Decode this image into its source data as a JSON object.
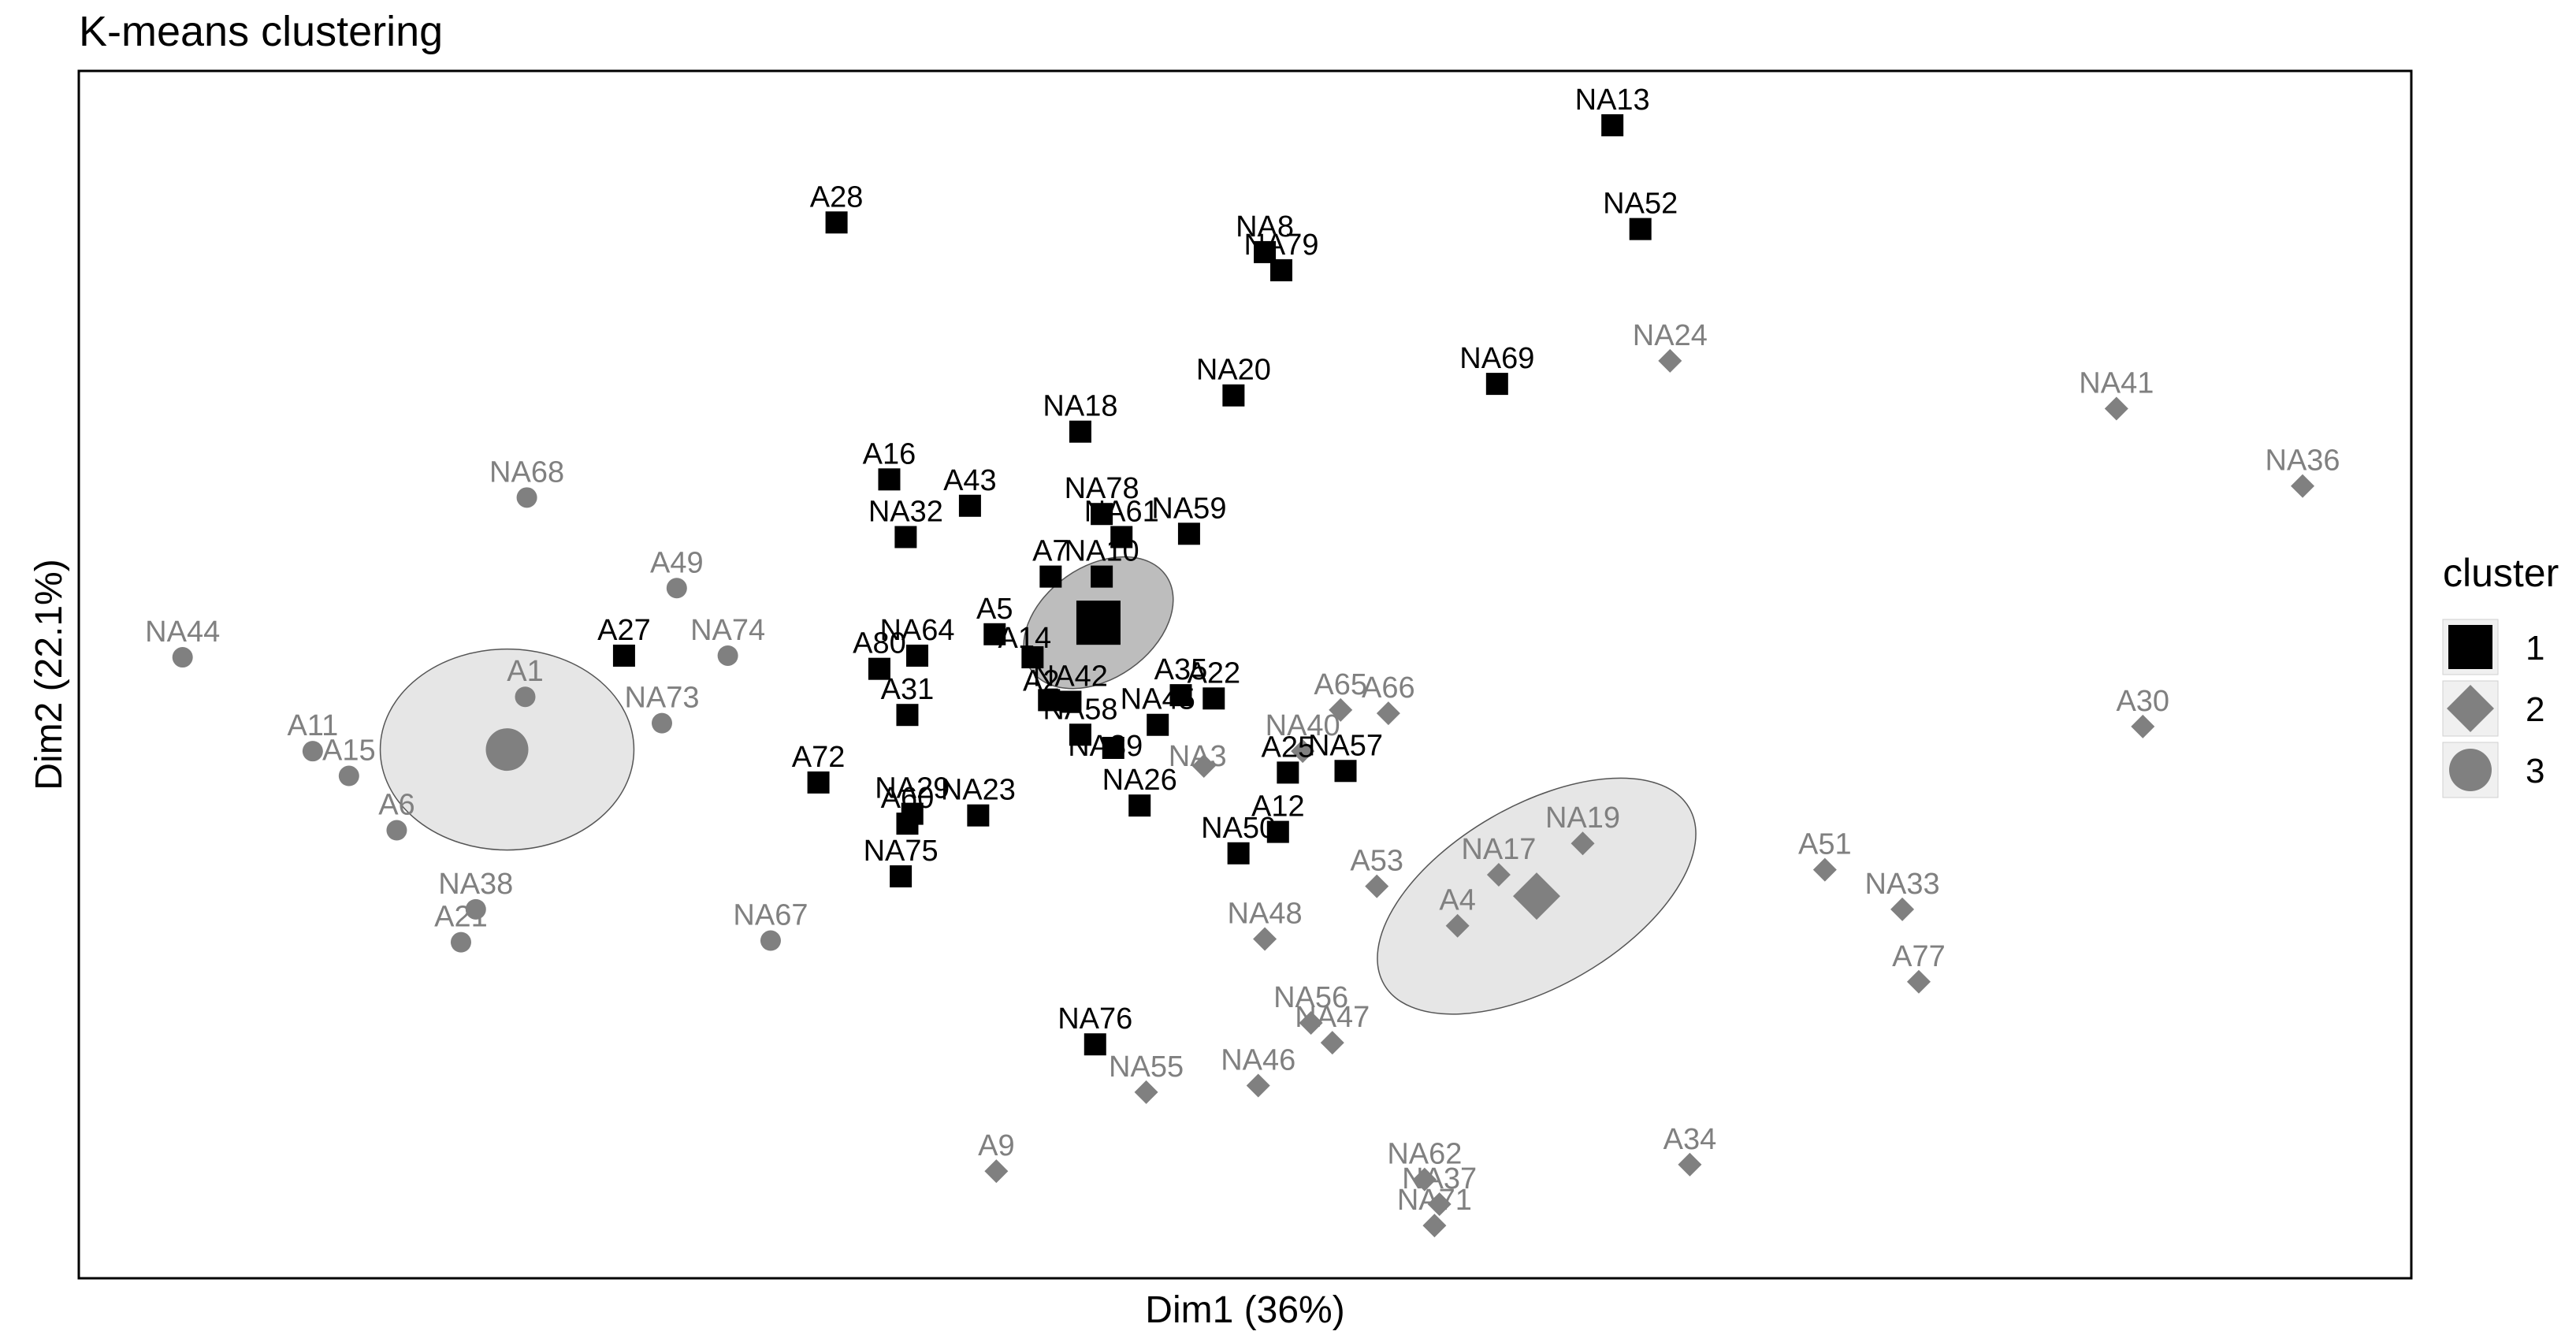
{
  "chart_data": {
    "type": "scatter",
    "title": "K-means clustering",
    "xlabel": "Dim1 (36%)",
    "ylabel": "Dim2 (22.1%)",
    "xlim": [
      0,
      1416
    ],
    "ylim": [
      0,
      733
    ],
    "grid": false,
    "legend": {
      "title": "cluster",
      "position": "right",
      "entries": [
        {
          "label": "1",
          "shape": "square",
          "color": "#000000"
        },
        {
          "label": "2",
          "shape": "diamond",
          "color": "#808080"
        },
        {
          "label": "3",
          "shape": "circle",
          "color": "#808080"
        }
      ]
    },
    "clusters": [
      {
        "name": "1",
        "color": "#000000",
        "label_color": "#000000",
        "shape": "square",
        "centroid": {
          "x": 619,
          "y": 398
        },
        "ellipse": {
          "rx": 50,
          "ry": 34,
          "angle": -35,
          "fill": "#bdbdbd"
        }
      },
      {
        "name": "2",
        "color": "#808080",
        "label_color": "#808080",
        "shape": "diamond",
        "centroid": {
          "x": 885,
          "y": 232
        },
        "ellipse": {
          "rx": 107,
          "ry": 55,
          "angle": -30,
          "fill": "#e6e6e6"
        }
      },
      {
        "name": "3",
        "color": "#808080",
        "label_color": "#808080",
        "shape": "circle",
        "centroid": {
          "x": 260,
          "y": 321
        },
        "ellipse": {
          "rx": 77,
          "ry": 61,
          "angle": 0,
          "fill": "#e6e6e6"
        }
      }
    ],
    "points": [
      {
        "label": "NA13",
        "x": 931,
        "y": 700,
        "cluster": "1"
      },
      {
        "label": "NA52",
        "x": 948,
        "y": 637,
        "cluster": "1"
      },
      {
        "label": "A28",
        "x": 460,
        "y": 641,
        "cluster": "1"
      },
      {
        "label": "NA8",
        "x": 720,
        "y": 623,
        "cluster": "1"
      },
      {
        "label": "NA79",
        "x": 730,
        "y": 612,
        "cluster": "1"
      },
      {
        "label": "NA20",
        "x": 701,
        "y": 536,
        "cluster": "1"
      },
      {
        "label": "NA69",
        "x": 861,
        "y": 543,
        "cluster": "1"
      },
      {
        "label": "NA18",
        "x": 608,
        "y": 514,
        "cluster": "1"
      },
      {
        "label": "A16",
        "x": 492,
        "y": 485,
        "cluster": "1"
      },
      {
        "label": "A43",
        "x": 541,
        "y": 469,
        "cluster": "1"
      },
      {
        "label": "NA78",
        "x": 621,
        "y": 464,
        "cluster": "1"
      },
      {
        "label": "NA32",
        "x": 502,
        "y": 450,
        "cluster": "1"
      },
      {
        "label": "NA61",
        "x": 633,
        "y": 450,
        "cluster": "1"
      },
      {
        "label": "NA59",
        "x": 674,
        "y": 452,
        "cluster": "1"
      },
      {
        "label": "A7",
        "x": 590,
        "y": 426,
        "cluster": "1"
      },
      {
        "label": "NA10",
        "x": 621,
        "y": 426,
        "cluster": "1"
      },
      {
        "label": "A5",
        "x": 556,
        "y": 391,
        "cluster": "1"
      },
      {
        "label": "A14",
        "x": 579,
        "y": 377,
        "cluster": "1"
      },
      {
        "label": "NA64",
        "x": 509,
        "y": 378,
        "cluster": "1"
      },
      {
        "label": "A80",
        "x": 486,
        "y": 370,
        "cluster": "1"
      },
      {
        "label": "A2",
        "x": 589,
        "y": 351,
        "cluster": "1"
      },
      {
        "label": "NA42",
        "x": 602,
        "y": 350,
        "cluster": "1"
      },
      {
        "label": "NA45",
        "x": 655,
        "y": 336,
        "cluster": "1"
      },
      {
        "label": "A35",
        "x": 669,
        "y": 354,
        "cluster": "1"
      },
      {
        "label": "A22",
        "x": 689,
        "y": 352,
        "cluster": "1"
      },
      {
        "label": "A31",
        "x": 503,
        "y": 342,
        "cluster": "1"
      },
      {
        "label": "NA58",
        "x": 608,
        "y": 330,
        "cluster": "1"
      },
      {
        "label": "NA39",
        "x": 628,
        "y": 322,
        "cluster": "1"
      },
      {
        "label": "A25",
        "x": 734,
        "y": 307,
        "cluster": "1"
      },
      {
        "label": "NA57",
        "x": 769,
        "y": 308,
        "cluster": "1"
      },
      {
        "label": "A72",
        "x": 449,
        "y": 301,
        "cluster": "1"
      },
      {
        "label": "NA29",
        "x": 506,
        "y": 282,
        "cluster": "1"
      },
      {
        "label": "A60",
        "x": 503,
        "y": 276,
        "cluster": "1"
      },
      {
        "label": "NA23",
        "x": 546,
        "y": 281,
        "cluster": "1"
      },
      {
        "label": "NA26",
        "x": 644,
        "y": 287,
        "cluster": "1"
      },
      {
        "label": "A12",
        "x": 728,
        "y": 271,
        "cluster": "1"
      },
      {
        "label": "NA50",
        "x": 704,
        "y": 258,
        "cluster": "1"
      },
      {
        "label": "NA75",
        "x": 499,
        "y": 244,
        "cluster": "1"
      },
      {
        "label": "NA76",
        "x": 617,
        "y": 142,
        "cluster": "1"
      },
      {
        "label": "A27",
        "x": 331,
        "y": 378,
        "cluster": "1"
      },
      {
        "label": "NA24",
        "x": 966,
        "y": 557,
        "cluster": "2"
      },
      {
        "label": "NA41",
        "x": 1237,
        "y": 528,
        "cluster": "2"
      },
      {
        "label": "NA36",
        "x": 1350,
        "y": 481,
        "cluster": "2"
      },
      {
        "label": "A65",
        "x": 766,
        "y": 345,
        "cluster": "2"
      },
      {
        "label": "A66",
        "x": 795,
        "y": 343,
        "cluster": "2"
      },
      {
        "label": "NA40",
        "x": 743,
        "y": 320,
        "cluster": "2"
      },
      {
        "label": "NA3",
        "x": 683,
        "y": 311,
        "cluster": "2"
      },
      {
        "label": "A30",
        "x": 1253,
        "y": 335,
        "cluster": "2"
      },
      {
        "label": "NA19",
        "x": 913,
        "y": 264,
        "cluster": "2"
      },
      {
        "label": "A53",
        "x": 788,
        "y": 238,
        "cluster": "2"
      },
      {
        "label": "NA17",
        "x": 862,
        "y": 245,
        "cluster": "2"
      },
      {
        "label": "A4",
        "x": 837,
        "y": 214,
        "cluster": "2"
      },
      {
        "label": "A51",
        "x": 1060,
        "y": 248,
        "cluster": "2"
      },
      {
        "label": "NA33",
        "x": 1107,
        "y": 224,
        "cluster": "2"
      },
      {
        "label": "A77",
        "x": 1117,
        "y": 180,
        "cluster": "2"
      },
      {
        "label": "NA48",
        "x": 720,
        "y": 206,
        "cluster": "2"
      },
      {
        "label": "NA56",
        "x": 748,
        "y": 155,
        "cluster": "2"
      },
      {
        "label": "NA47",
        "x": 761,
        "y": 143,
        "cluster": "2"
      },
      {
        "label": "NA55",
        "x": 648,
        "y": 113,
        "cluster": "2"
      },
      {
        "label": "NA46",
        "x": 716,
        "y": 117,
        "cluster": "2"
      },
      {
        "label": "A9",
        "x": 557,
        "y": 65,
        "cluster": "2"
      },
      {
        "label": "NA62",
        "x": 817,
        "y": 60,
        "cluster": "2"
      },
      {
        "label": "NA37",
        "x": 826,
        "y": 45,
        "cluster": "2"
      },
      {
        "label": "NA71",
        "x": 823,
        "y": 32,
        "cluster": "2"
      },
      {
        "label": "A34",
        "x": 978,
        "y": 69,
        "cluster": "2"
      },
      {
        "label": "NA68",
        "x": 272,
        "y": 474,
        "cluster": "3"
      },
      {
        "label": "A49",
        "x": 363,
        "y": 419,
        "cluster": "3"
      },
      {
        "label": "NA74",
        "x": 394,
        "y": 378,
        "cluster": "3"
      },
      {
        "label": "NA44",
        "x": 63,
        "y": 377,
        "cluster": "3"
      },
      {
        "label": "A1",
        "x": 271,
        "y": 353,
        "cluster": "3"
      },
      {
        "label": "NA73",
        "x": 354,
        "y": 337,
        "cluster": "3"
      },
      {
        "label": "A11",
        "x": 142,
        "y": 320,
        "cluster": "3"
      },
      {
        "label": "A15",
        "x": 164,
        "y": 305,
        "cluster": "3"
      },
      {
        "label": "A6",
        "x": 193,
        "y": 272,
        "cluster": "3"
      },
      {
        "label": "NA38",
        "x": 241,
        "y": 224,
        "cluster": "3"
      },
      {
        "label": "A21",
        "x": 232,
        "y": 204,
        "cluster": "3"
      },
      {
        "label": "NA67",
        "x": 420,
        "y": 205,
        "cluster": "3"
      }
    ]
  }
}
